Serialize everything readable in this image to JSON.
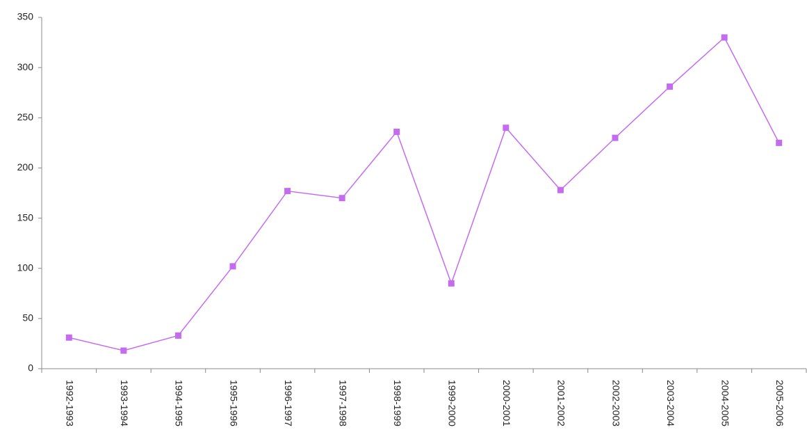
{
  "chart_data": {
    "type": "line",
    "categories": [
      "1992-1993",
      "1993-1994",
      "1994-1995",
      "1995-1996",
      "1996-1997",
      "1997-1998",
      "1998-1999",
      "1999-2000",
      "2000-2001",
      "2001-2002",
      "2002-2003",
      "2003-2004",
      "2004-2005",
      "2005-2006"
    ],
    "series": [
      {
        "color": "#c36cf0",
        "values": [
          31,
          18,
          33,
          102,
          177,
          170,
          236,
          85,
          240,
          178,
          230,
          281,
          330,
          225
        ]
      }
    ],
    "ylim": [
      0,
      350
    ],
    "yticks": [
      0,
      50,
      100,
      150,
      200,
      250,
      300,
      350
    ],
    "grid": false
  }
}
